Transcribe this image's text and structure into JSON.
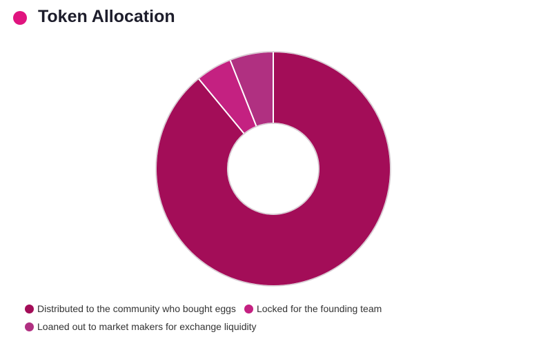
{
  "title": "Token Allocation",
  "chart_data": {
    "type": "pie",
    "categories": [
      "Distributed to the community who bought eggs",
      "Locked for the founding team",
      "Loaned out to market makers for exchange liquidity"
    ],
    "values": [
      89,
      5,
      6
    ],
    "colors": [
      "#a30d58",
      "#c42181",
      "#b03081"
    ]
  }
}
